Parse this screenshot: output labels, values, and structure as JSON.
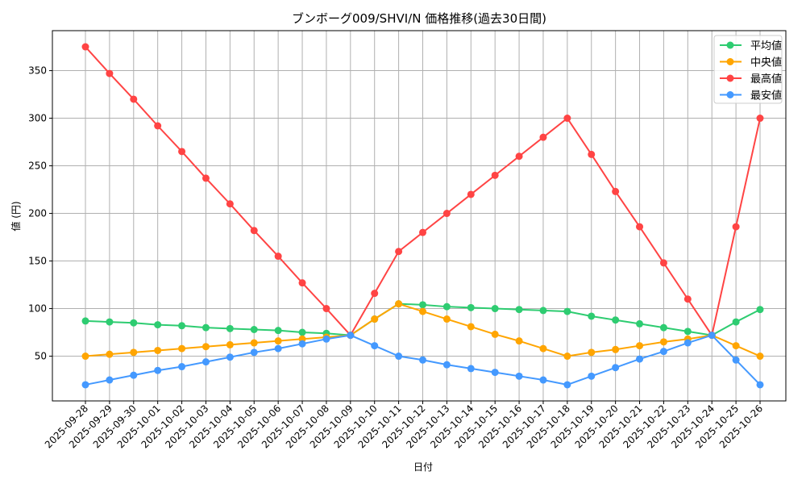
{
  "chart_data": {
    "type": "line",
    "title": "ブンボーグ009/SHVI/N 価格推移(過去30日間)",
    "xlabel": "日付",
    "ylabel": "値 (円)",
    "ylim": [
      3,
      392
    ],
    "yticks": [
      50,
      100,
      150,
      200,
      250,
      300,
      350
    ],
    "grid": true,
    "legend_position": "top-right",
    "x": [
      "2025-09-28",
      "2025-09-29",
      "2025-09-30",
      "2025-10-01",
      "2025-10-02",
      "2025-10-03",
      "2025-10-04",
      "2025-10-05",
      "2025-10-06",
      "2025-10-07",
      "2025-10-08",
      "2025-10-09",
      "2025-10-10",
      "2025-10-11",
      "2025-10-12",
      "2025-10-13",
      "2025-10-14",
      "2025-10-15",
      "2025-10-16",
      "2025-10-17",
      "2025-10-18",
      "2025-10-19",
      "2025-10-20",
      "2025-10-21",
      "2025-10-22",
      "2025-10-23",
      "2025-10-24",
      "2025-10-25",
      "2025-10-26"
    ],
    "series": [
      {
        "name": "平均値",
        "color": "#2ecc71",
        "values": [
          87,
          86,
          85,
          83,
          82,
          80,
          79,
          78,
          77,
          75,
          74,
          72,
          89,
          105,
          104,
          102,
          101,
          100,
          99,
          98,
          97,
          92,
          88,
          84,
          80,
          76,
          72,
          86,
          99
        ]
      },
      {
        "name": "中央値",
        "color": "#ffa500",
        "values": [
          50,
          52,
          54,
          56,
          58,
          60,
          62,
          64,
          66,
          68,
          70,
          72,
          89,
          105,
          97,
          89,
          81,
          73,
          66,
          58,
          50,
          54,
          57,
          61,
          65,
          68,
          72,
          61,
          50
        ]
      },
      {
        "name": "最高値",
        "color": "#ff4444",
        "values": [
          375,
          347,
          320,
          292,
          265,
          237,
          210,
          182,
          155,
          127,
          100,
          72,
          116,
          160,
          180,
          200,
          220,
          240,
          260,
          280,
          300,
          262,
          223,
          186,
          148,
          110,
          72,
          186,
          300
        ]
      },
      {
        "name": "最安値",
        "color": "#4499ff",
        "values": [
          20,
          25,
          30,
          35,
          39,
          44,
          49,
          54,
          58,
          63,
          68,
          72,
          61,
          50,
          46,
          41,
          37,
          33,
          29,
          25,
          20,
          29,
          38,
          47,
          55,
          64,
          72,
          46,
          20
        ]
      }
    ]
  }
}
